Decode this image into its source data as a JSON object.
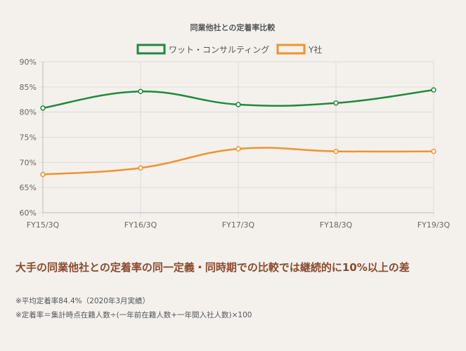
{
  "chart_data": {
    "type": "line",
    "title": "同業他社との定着率比較",
    "categories": [
      "FY15/3Q",
      "FY16/3Q",
      "FY17/3Q",
      "FY18/3Q",
      "FY19/3Q"
    ],
    "y_ticks": [
      "90%",
      "85%",
      "80%",
      "75%",
      "70%",
      "65%",
      "60%"
    ],
    "ylim": [
      60,
      90
    ],
    "grid": true,
    "legend_position": "top-center",
    "series": [
      {
        "name": "ワット・コンサルティング",
        "color": "#1e8a3c",
        "values": [
          80.8,
          84.1,
          81.5,
          81.8,
          84.4
        ]
      },
      {
        "name": "Y社",
        "color": "#f0922e",
        "values": [
          67.6,
          68.9,
          72.7,
          72.2,
          72.2
        ]
      }
    ]
  },
  "headline": "大手の同業他社との定着率の同一定義・同時期での比較では継続的に10%以上の差",
  "notes": [
    "※平均定着率84.4%（2020年3月実績）",
    "※定着率＝集計時点在籍人数÷(一年前在籍人数+一年間入社人数)×100"
  ]
}
